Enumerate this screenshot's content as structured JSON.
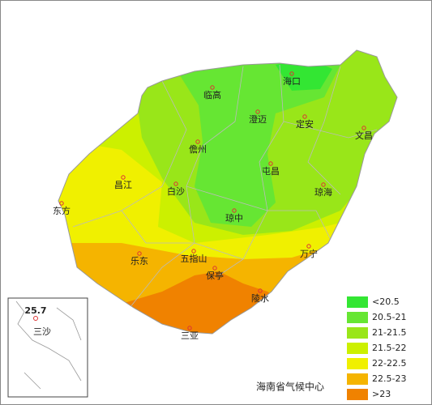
{
  "cities": [
    {
      "name": "海口"
    },
    {
      "name": "临高"
    },
    {
      "name": "澄迈"
    },
    {
      "name": "定安"
    },
    {
      "name": "文昌"
    },
    {
      "name": "儋州"
    },
    {
      "name": "屯昌"
    },
    {
      "name": "昌江"
    },
    {
      "name": "白沙"
    },
    {
      "name": "琼海"
    },
    {
      "name": "东方"
    },
    {
      "name": "琼中"
    },
    {
      "name": "乐东"
    },
    {
      "name": "五指山"
    },
    {
      "name": "万宁"
    },
    {
      "name": "保亭"
    },
    {
      "name": "陵水"
    },
    {
      "name": "三亚"
    }
  ],
  "legend": [
    {
      "label": "<20.5",
      "color": "#33e633"
    },
    {
      "label": "20.5-21",
      "color": "#66e633"
    },
    {
      "label": "21-21.5",
      "color": "#99e619"
    },
    {
      "label": "21.5-22",
      "color": "#ccf000"
    },
    {
      "label": "22-22.5",
      "color": "#f0f000"
    },
    {
      "label": "22.5-23",
      "color": "#f5b400"
    },
    {
      "label": ">23",
      "color": "#f08200"
    }
  ],
  "inset": {
    "value_label": "25.7",
    "name": "三沙"
  },
  "credit": "海南省气候中心"
}
